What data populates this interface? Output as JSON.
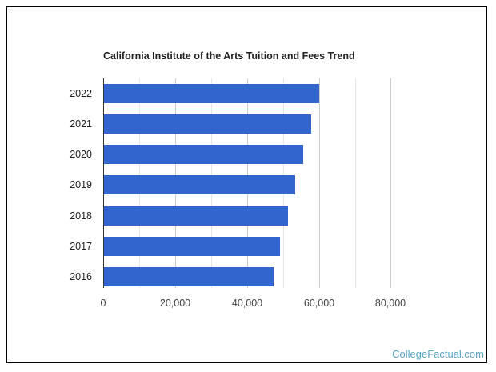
{
  "chart_data": {
    "type": "bar",
    "orientation": "horizontal",
    "title": "California Institute of the Arts Tuition and Fees Trend",
    "xlabel": "",
    "ylabel": "",
    "categories": [
      "2022",
      "2021",
      "2020",
      "2019",
      "2018",
      "2017",
      "2016"
    ],
    "values": [
      60100,
      57900,
      55700,
      53450,
      51450,
      49200,
      47400
    ],
    "xlim": [
      0,
      80000
    ],
    "x_ticks": [
      "0",
      "20,000",
      "40,000",
      "60,000",
      "80,000"
    ],
    "grid": true,
    "legend": "none",
    "bar_color": "#3366cc"
  },
  "credit": "CollegeFactual.com"
}
